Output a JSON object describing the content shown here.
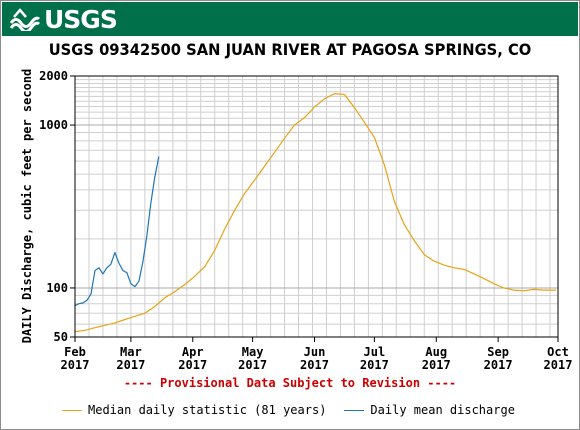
{
  "banner": {
    "logo_text": "USGS",
    "color": "#00704a"
  },
  "provisional_note": "---- Provisional Data Subject to Revision ----",
  "chart_data": {
    "type": "line",
    "title": "USGS 09342500 SAN JUAN RIVER AT PAGOSA SPRINGS, CO",
    "ylabel": "DAILY Discharge, cubic feet per second",
    "xlabel": "",
    "yscale": "log",
    "ylim": [
      50,
      2000
    ],
    "y_ticks": [
      50,
      100,
      1000,
      2000
    ],
    "y_tick_labels": [
      "50",
      "100",
      "1000",
      "2000"
    ],
    "xlim": [
      "2017-02-01",
      "2017-10-01"
    ],
    "x_ticks": [
      {
        "date": "2017-02-01",
        "label1": "Feb",
        "label2": "2017"
      },
      {
        "date": "2017-03-01",
        "label1": "Mar",
        "label2": "2017"
      },
      {
        "date": "2017-04-01",
        "label1": "Apr",
        "label2": "2017"
      },
      {
        "date": "2017-05-01",
        "label1": "May",
        "label2": "2017"
      },
      {
        "date": "2017-06-01",
        "label1": "Jun",
        "label2": "2017"
      },
      {
        "date": "2017-07-01",
        "label1": "Jul",
        "label2": "2017"
      },
      {
        "date": "2017-08-01",
        "label1": "Aug",
        "label2": "2017"
      },
      {
        "date": "2017-09-01",
        "label1": "Sep",
        "label2": "2017"
      },
      {
        "date": "2017-10-01",
        "label1": "Oct",
        "label2": "2017"
      }
    ],
    "grid": true,
    "legend_position": "bottom",
    "series": [
      {
        "name": "Median daily statistic (81 years)",
        "color": "#e8a317",
        "points": [
          [
            "2017-02-01",
            54
          ],
          [
            "2017-02-06",
            55
          ],
          [
            "2017-02-11",
            57
          ],
          [
            "2017-02-16",
            59
          ],
          [
            "2017-02-21",
            61
          ],
          [
            "2017-02-26",
            64
          ],
          [
            "2017-03-03",
            67
          ],
          [
            "2017-03-08",
            70
          ],
          [
            "2017-03-13",
            77
          ],
          [
            "2017-03-18",
            87
          ],
          [
            "2017-03-23",
            95
          ],
          [
            "2017-03-28",
            105
          ],
          [
            "2017-04-02",
            118
          ],
          [
            "2017-04-07",
            135
          ],
          [
            "2017-04-12",
            170
          ],
          [
            "2017-04-17",
            230
          ],
          [
            "2017-04-22",
            300
          ],
          [
            "2017-04-27",
            380
          ],
          [
            "2017-05-02",
            460
          ],
          [
            "2017-05-07",
            560
          ],
          [
            "2017-05-12",
            680
          ],
          [
            "2017-05-17",
            830
          ],
          [
            "2017-05-22",
            1000
          ],
          [
            "2017-05-27",
            1110
          ],
          [
            "2017-06-01",
            1290
          ],
          [
            "2017-06-06",
            1450
          ],
          [
            "2017-06-11",
            1560
          ],
          [
            "2017-06-16",
            1540
          ],
          [
            "2017-06-21",
            1280
          ],
          [
            "2017-06-26",
            1040
          ],
          [
            "2017-07-01",
            840
          ],
          [
            "2017-07-06",
            570
          ],
          [
            "2017-07-11",
            340
          ],
          [
            "2017-07-16",
            245
          ],
          [
            "2017-07-21",
            195
          ],
          [
            "2017-07-26",
            160
          ],
          [
            "2017-07-31",
            146
          ],
          [
            "2017-08-05",
            138
          ],
          [
            "2017-08-10",
            133
          ],
          [
            "2017-08-15",
            130
          ],
          [
            "2017-08-20",
            122
          ],
          [
            "2017-08-25",
            114
          ],
          [
            "2017-08-30",
            106
          ],
          [
            "2017-09-04",
            100
          ],
          [
            "2017-09-09",
            97
          ],
          [
            "2017-09-14",
            96
          ],
          [
            "2017-09-19",
            98
          ],
          [
            "2017-09-24",
            97
          ],
          [
            "2017-09-30",
            97
          ]
        ]
      },
      {
        "name": "Daily mean discharge",
        "color": "#1f77b4",
        "points": [
          [
            "2017-02-01",
            78
          ],
          [
            "2017-02-03",
            80
          ],
          [
            "2017-02-05",
            81
          ],
          [
            "2017-02-07",
            84
          ],
          [
            "2017-02-09",
            92
          ],
          [
            "2017-02-11",
            128
          ],
          [
            "2017-02-13",
            133
          ],
          [
            "2017-02-15",
            122
          ],
          [
            "2017-02-17",
            133
          ],
          [
            "2017-02-19",
            140
          ],
          [
            "2017-02-21",
            165
          ],
          [
            "2017-02-23",
            142
          ],
          [
            "2017-02-25",
            128
          ],
          [
            "2017-02-27",
            124
          ],
          [
            "2017-03-01",
            106
          ],
          [
            "2017-03-03",
            102
          ],
          [
            "2017-03-05",
            110
          ],
          [
            "2017-03-07",
            145
          ],
          [
            "2017-03-09",
            210
          ],
          [
            "2017-03-11",
            330
          ],
          [
            "2017-03-13",
            480
          ],
          [
            "2017-03-15",
            640
          ]
        ]
      }
    ]
  }
}
